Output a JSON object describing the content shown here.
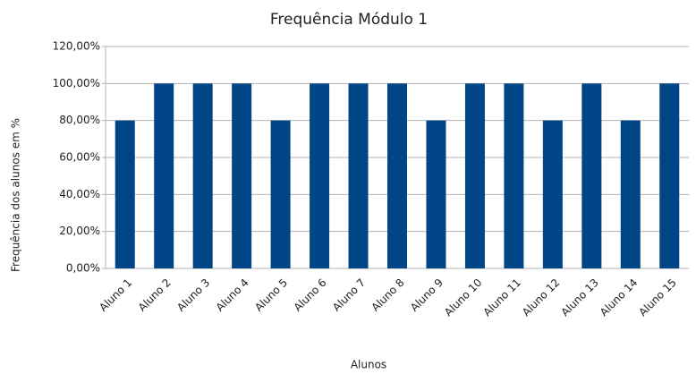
{
  "chart_data": {
    "type": "bar",
    "title": "Frequência Módulo 1",
    "x_label": "Alunos",
    "y_label": "Frequência dos alunos em %",
    "categories": [
      "Aluno 1",
      "Aluno 2",
      "Aluno 3",
      "Aluno 4",
      "Aluno 5",
      "Aluno 6",
      "Aluno 7",
      "Aluno 8",
      "Aluno 9",
      "Aluno 10",
      "Aluno 11",
      "Aluno 12",
      "Aluno 13",
      "Aluno 14",
      "Aluno 15"
    ],
    "values": [
      80,
      100,
      100,
      100,
      80,
      100,
      100,
      100,
      80,
      100,
      100,
      80,
      100,
      80,
      100
    ],
    "color": "#004586",
    "ylim": [
      0,
      120
    ],
    "yticks": [
      {
        "value": 0,
        "label": "0,00%"
      },
      {
        "value": 20,
        "label": "20,00%"
      },
      {
        "value": 40,
        "label": "40,00%"
      },
      {
        "value": 60,
        "label": "60,00%"
      },
      {
        "value": 80,
        "label": "80,00%"
      },
      {
        "value": 100,
        "label": "100,00%"
      },
      {
        "value": 120,
        "label": "120,00%"
      }
    ],
    "grid": true
  }
}
